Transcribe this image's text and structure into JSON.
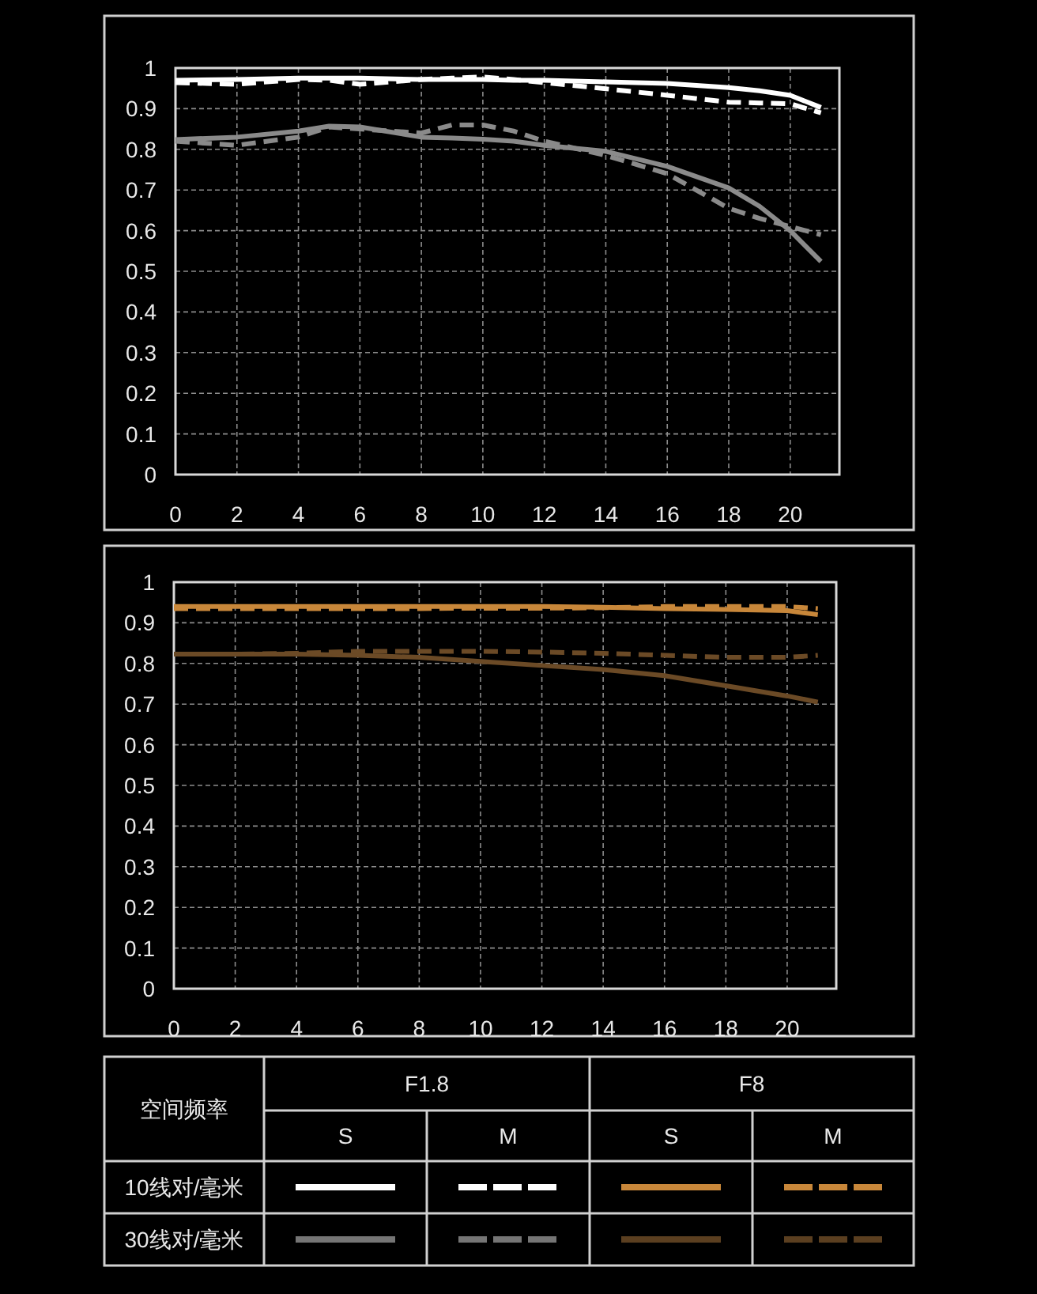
{
  "chart_data": [
    {
      "type": "line",
      "xlim": [
        0,
        21.6
      ],
      "ylim": [
        0,
        1
      ],
      "xticks": [
        0,
        2,
        4,
        6,
        8,
        10,
        12,
        14,
        16,
        18,
        20
      ],
      "yticks": [
        0,
        0.1,
        0.2,
        0.3,
        0.4,
        0.5,
        0.6,
        0.7,
        0.8,
        0.9,
        1
      ],
      "grid": true,
      "x": [
        0,
        2,
        4,
        5,
        6,
        8,
        9,
        10,
        11,
        12,
        14,
        16,
        18,
        19,
        20,
        21
      ],
      "series": [
        {
          "color": "#ffffff",
          "line_style": "solid",
          "values": [
            0.97,
            0.972,
            0.975,
            0.975,
            0.975,
            0.972,
            0.972,
            0.972,
            0.97,
            0.97,
            0.966,
            0.962,
            0.952,
            0.944,
            0.933,
            0.903
          ]
        },
        {
          "color": "#ffffff",
          "line_style": "dashed",
          "values": [
            0.964,
            0.96,
            0.972,
            0.97,
            0.96,
            0.972,
            0.975,
            0.978,
            0.972,
            0.964,
            0.949,
            0.933,
            0.916,
            0.914,
            0.912,
            0.89
          ]
        },
        {
          "color": "#8a8a8a",
          "line_style": "solid",
          "values": [
            0.824,
            0.83,
            0.845,
            0.857,
            0.855,
            0.83,
            0.828,
            0.825,
            0.82,
            0.81,
            0.795,
            0.758,
            0.705,
            0.66,
            0.6,
            0.524
          ]
        },
        {
          "color": "#8a8a8a",
          "line_style": "dashed",
          "values": [
            0.82,
            0.81,
            0.83,
            0.855,
            0.85,
            0.84,
            0.86,
            0.86,
            0.845,
            0.82,
            0.785,
            0.74,
            0.655,
            0.63,
            0.61,
            0.59
          ]
        }
      ]
    },
    {
      "type": "line",
      "xlim": [
        0,
        21.6
      ],
      "ylim": [
        0,
        1
      ],
      "xticks": [
        0,
        2,
        4,
        6,
        8,
        10,
        12,
        14,
        16,
        18,
        20
      ],
      "yticks": [
        0,
        0.1,
        0.2,
        0.3,
        0.4,
        0.5,
        0.6,
        0.7,
        0.8,
        0.9,
        1
      ],
      "grid": true,
      "x": [
        0,
        2,
        4,
        6,
        8,
        10,
        12,
        14,
        16,
        18,
        20,
        21
      ],
      "series": [
        {
          "color": "#c8873a",
          "line_style": "solid",
          "values": [
            0.94,
            0.94,
            0.94,
            0.94,
            0.94,
            0.94,
            0.94,
            0.938,
            0.935,
            0.933,
            0.93,
            0.92
          ]
        },
        {
          "color": "#c8873a",
          "line_style": "dashed",
          "values": [
            0.935,
            0.935,
            0.935,
            0.935,
            0.935,
            0.936,
            0.936,
            0.937,
            0.94,
            0.94,
            0.94,
            0.935
          ]
        },
        {
          "color": "#6b4a26",
          "line_style": "solid",
          "values": [
            0.823,
            0.823,
            0.823,
            0.82,
            0.815,
            0.805,
            0.795,
            0.785,
            0.77,
            0.745,
            0.72,
            0.705
          ]
        },
        {
          "color": "#6b4a26",
          "line_style": "dashed",
          "values": [
            0.823,
            0.823,
            0.825,
            0.83,
            0.83,
            0.83,
            0.828,
            0.825,
            0.82,
            0.815,
            0.815,
            0.82
          ]
        }
      ]
    },
    {
      "type": "other",
      "annotations": [
        "空间频率",
        "F1.8",
        "F8",
        "S",
        "M",
        "S",
        "M",
        "10线对/毫米",
        "30线对/毫米"
      ]
    }
  ]
}
